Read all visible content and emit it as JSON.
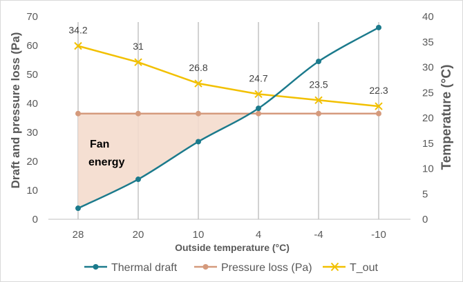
{
  "chart_data": {
    "type": "line",
    "categories": [
      "28",
      "20",
      "10",
      "4",
      "-4",
      "-10"
    ],
    "xlabel": "Outside temperature (°C)",
    "ylabel_left": "Draft and pressure loss (Pa)",
    "ylabel_right": "Temperature (°C)",
    "ylim_left": [
      0,
      70
    ],
    "ylim_right": [
      0,
      40
    ],
    "yticks_left": [
      0,
      10,
      20,
      30,
      40,
      50,
      60,
      70
    ],
    "yticks_right": [
      0,
      5,
      10,
      15,
      20,
      25,
      30,
      35,
      40
    ],
    "series": [
      {
        "name": "Thermal draft",
        "axis": "left",
        "color": "#1b7a8c",
        "marker": "circle",
        "values": [
          3.8,
          13.8,
          26.8,
          38.3,
          54.5,
          66.2
        ]
      },
      {
        "name": "Pressure loss (Pa)",
        "axis": "left",
        "color": "#d59a7c",
        "marker": "circle",
        "values": [
          36.5,
          36.5,
          36.5,
          36.5,
          36.5,
          36.5
        ]
      },
      {
        "name": "T_out",
        "axis": "right",
        "color": "#f2c000",
        "marker": "x",
        "values": [
          34.2,
          31,
          26.8,
          24.7,
          23.5,
          22.3
        ],
        "data_labels": [
          "34.2",
          "31",
          "26.8",
          "24.7",
          "23.5",
          "22.3"
        ]
      }
    ],
    "annotation": {
      "line1": "Fan",
      "line2": "energy",
      "fill_color": "#f4dccd"
    },
    "legend_position": "bottom"
  }
}
